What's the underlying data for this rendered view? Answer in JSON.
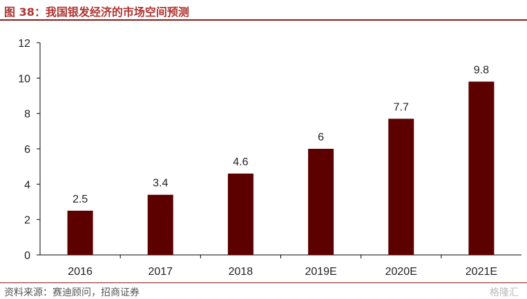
{
  "header": {
    "title": "图 38：我国银发经济的市场空间预测"
  },
  "footer": {
    "source": "资料来源：赛迪顾问，招商证券",
    "watermark": "格隆汇"
  },
  "colors": {
    "bar": "#5c0000",
    "title": "#b0332f",
    "rule": "#8b1a1a"
  },
  "chart_data": {
    "type": "bar",
    "title": "我国银发经济的市场空间预测",
    "categories": [
      "2016",
      "2017",
      "2018",
      "2019E",
      "2020E",
      "2021E"
    ],
    "values": [
      2.5,
      3.4,
      4.6,
      6,
      7.7,
      9.8
    ],
    "value_labels": [
      "2.5",
      "3.4",
      "4.6",
      "6",
      "7.7",
      "9.8"
    ],
    "y_ticks": [
      "0",
      "2",
      "4",
      "6",
      "8",
      "10",
      "12"
    ],
    "ylim": [
      0,
      12
    ],
    "xlabel": "",
    "ylabel": "",
    "grid": false,
    "legend": "none"
  }
}
